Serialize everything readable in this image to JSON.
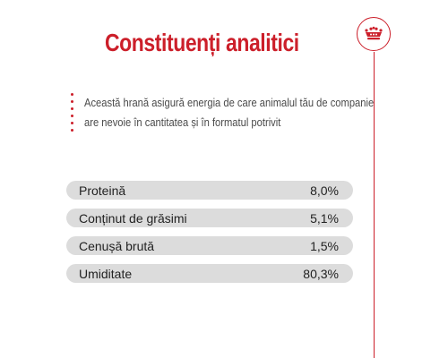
{
  "title": "Constituenți analitici",
  "intro": "Această hrană asigură energia de care animalul tău de companie are nevoie în cantitatea și în formatul potrivit",
  "brand_icon": "crown-icon",
  "colors": {
    "accent": "#cc1f2a",
    "row_background": "#dcdcdc"
  },
  "constituents": [
    {
      "label": "Proteină",
      "value": "8,0%"
    },
    {
      "label": "Conținut de grăsimi",
      "value": "5,1%"
    },
    {
      "label": "Cenușă brută",
      "value": "1,5%"
    },
    {
      "label": "Umiditate",
      "value": "80,3%"
    }
  ]
}
